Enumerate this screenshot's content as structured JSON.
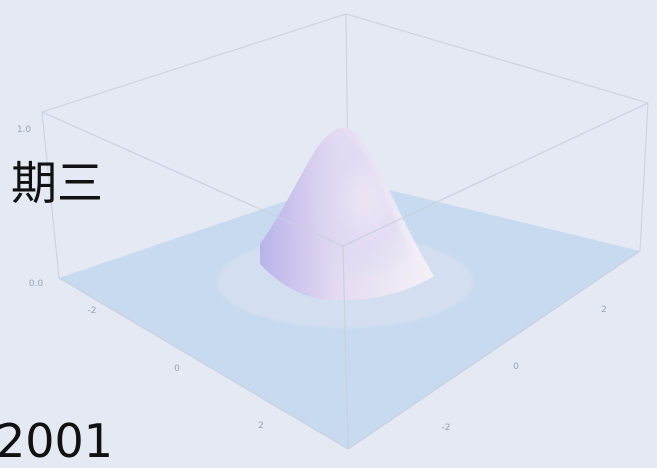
{
  "slide": {
    "text_top": "期三",
    "text_bottom": "2001",
    "background": "#e4e9f3"
  },
  "chart_data": {
    "type": "surface",
    "function": "gaussian bump, peak at center",
    "x_ticks": [
      "-2",
      "0",
      "2"
    ],
    "y_ticks": [
      "-2",
      "0",
      "2"
    ],
    "z_ticks": [
      "0.0",
      "1.0"
    ],
    "peak": {
      "x": 0,
      "y": 0,
      "z": 1.0
    },
    "box": true,
    "colors": {
      "floor": "#c6d8ef",
      "peak": "#f1e9f6",
      "shadow": "#c3b7e8",
      "box_edge": "#c9d0de",
      "tick_text": "#9aa3b3"
    }
  }
}
